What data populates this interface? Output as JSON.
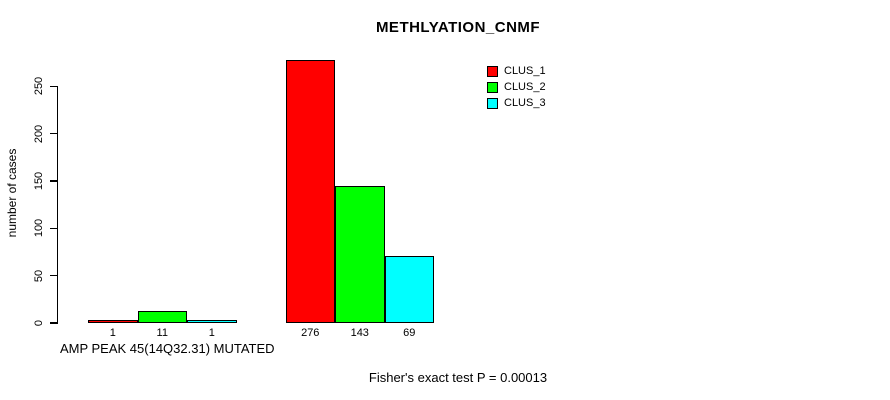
{
  "title": "METHLYATION_CNMF",
  "ylabel": "number of cases",
  "footer": "Fisher's exact test P = 0.00013",
  "chart_data": {
    "type": "bar",
    "title": "METHLYATION_CNMF",
    "xlabel": "",
    "ylabel": "number of cases",
    "annotation": "Fisher's exact test P = 0.00013",
    "grid": false,
    "legend_position": "top-right",
    "yticks": [
      0,
      50,
      100,
      150,
      200,
      250
    ],
    "ylim": [
      0,
      292
    ],
    "bar_value_labels_shown": true,
    "series": [
      {
        "name": "CLUS_1",
        "color": "#FF0000"
      },
      {
        "name": "CLUS_2",
        "color": "#00FF00"
      },
      {
        "name": "CLUS_3",
        "color": "#00FFFF"
      }
    ],
    "groups": [
      {
        "label": "AMP PEAK 45(14Q32.31) MUTATED",
        "values": [
          1,
          11,
          1
        ]
      },
      {
        "label": "",
        "values": [
          276,
          143,
          69
        ]
      }
    ]
  }
}
